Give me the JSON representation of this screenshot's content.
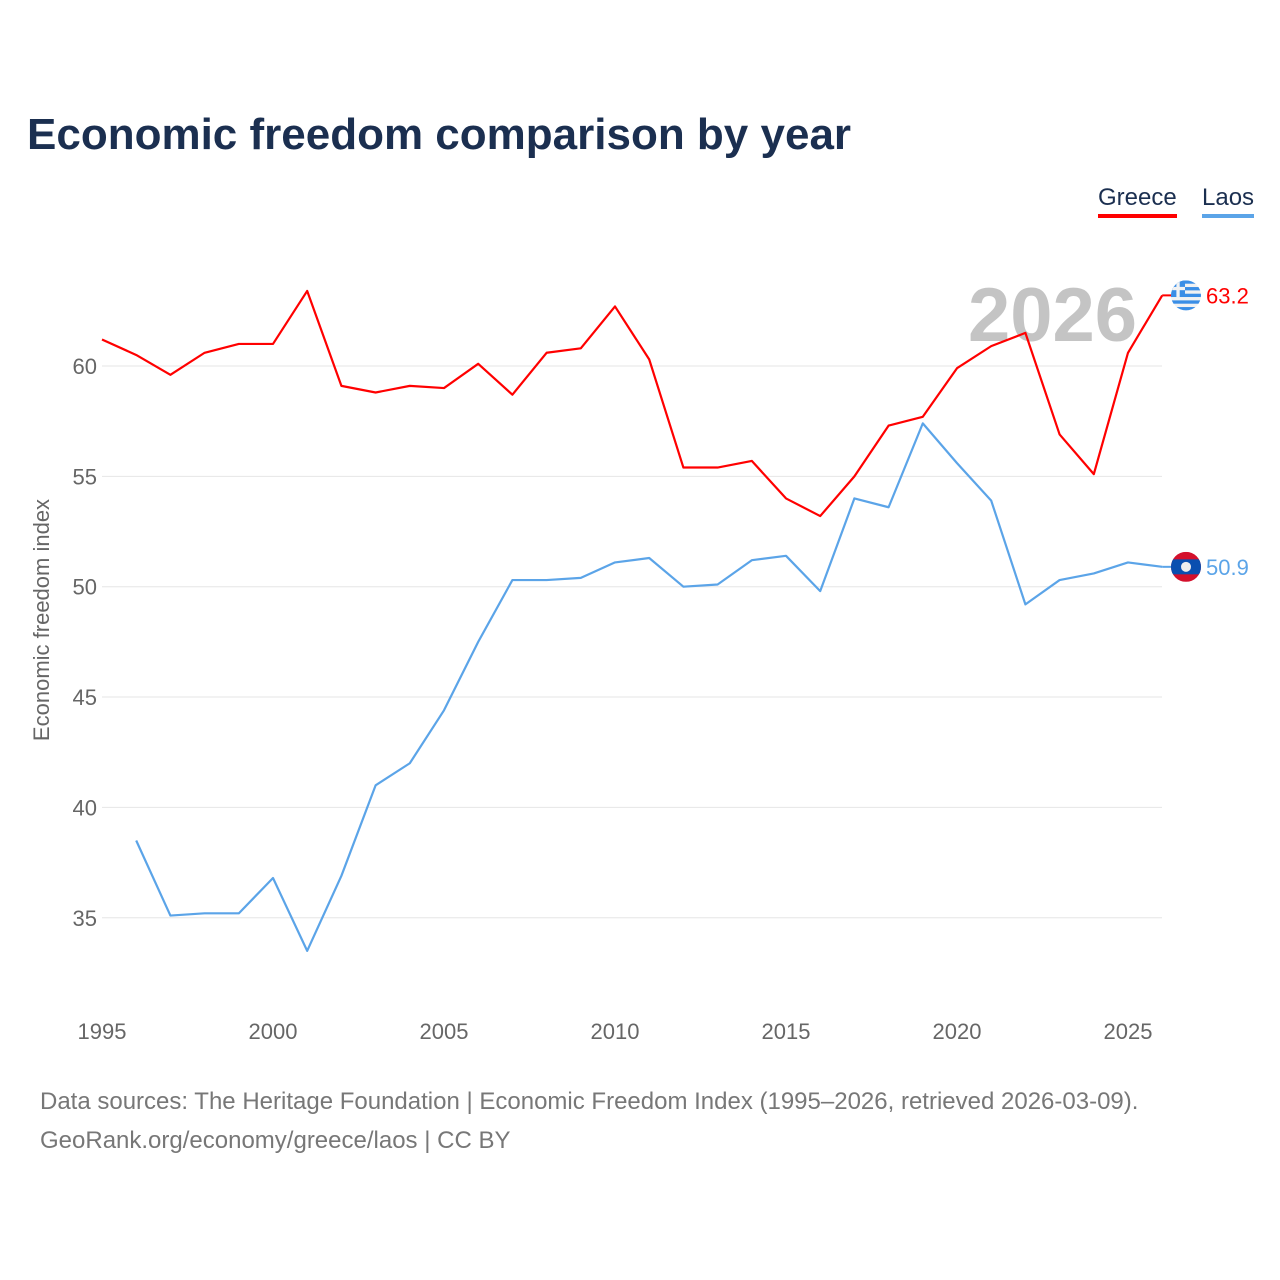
{
  "chart_data": {
    "type": "line",
    "title": "Economic freedom comparison by year",
    "xlabel": "",
    "ylabel": "Economic freedom index",
    "xlim": [
      1995,
      2026
    ],
    "ylim": [
      32,
      65
    ],
    "xticks": [
      1995,
      2000,
      2005,
      2010,
      2015,
      2020,
      2025
    ],
    "yticks": [
      35,
      40,
      45,
      50,
      55,
      60
    ],
    "grid": true,
    "legend": "top-right",
    "highlight_year": "2026",
    "series": [
      {
        "name": "Greece",
        "color": "#ff0000",
        "end_label": "63.2",
        "x": [
          1995,
          1996,
          1997,
          1998,
          1999,
          2000,
          2001,
          2002,
          2003,
          2004,
          2005,
          2006,
          2007,
          2008,
          2009,
          2010,
          2011,
          2012,
          2013,
          2014,
          2015,
          2016,
          2017,
          2018,
          2019,
          2020,
          2021,
          2022,
          2023,
          2024,
          2025,
          2026
        ],
        "values": [
          61.2,
          60.5,
          59.6,
          60.6,
          61.0,
          61.0,
          63.4,
          59.1,
          58.8,
          59.1,
          59.0,
          60.1,
          58.7,
          60.6,
          60.8,
          62.7,
          60.3,
          55.4,
          55.4,
          55.7,
          54.0,
          53.2,
          55.0,
          57.3,
          57.7,
          59.9,
          60.9,
          61.5,
          56.9,
          55.1,
          60.6,
          63.2
        ]
      },
      {
        "name": "Laos",
        "color": "#5ba4e8",
        "end_label": "50.9",
        "x": [
          1996,
          1997,
          1998,
          1999,
          2000,
          2001,
          2002,
          2003,
          2004,
          2005,
          2006,
          2007,
          2008,
          2009,
          2010,
          2011,
          2012,
          2013,
          2014,
          2015,
          2016,
          2017,
          2018,
          2019,
          2020,
          2021,
          2022,
          2023,
          2024,
          2025,
          2026
        ],
        "values": [
          38.5,
          35.1,
          35.2,
          35.2,
          36.8,
          33.5,
          36.9,
          41.0,
          42.0,
          44.4,
          47.5,
          50.3,
          50.3,
          50.4,
          51.1,
          51.3,
          50.0,
          50.1,
          51.2,
          51.4,
          49.8,
          54.0,
          53.6,
          57.4,
          55.6,
          53.9,
          49.2,
          50.3,
          50.6,
          51.1,
          50.9
        ]
      }
    ]
  },
  "footer": {
    "line1": "Data sources: The Heritage Foundation | Economic Freedom Index (1995–2026, retrieved 2026-03-09).",
    "line2": "GeoRank.org/economy/greece/laos | CC BY"
  }
}
